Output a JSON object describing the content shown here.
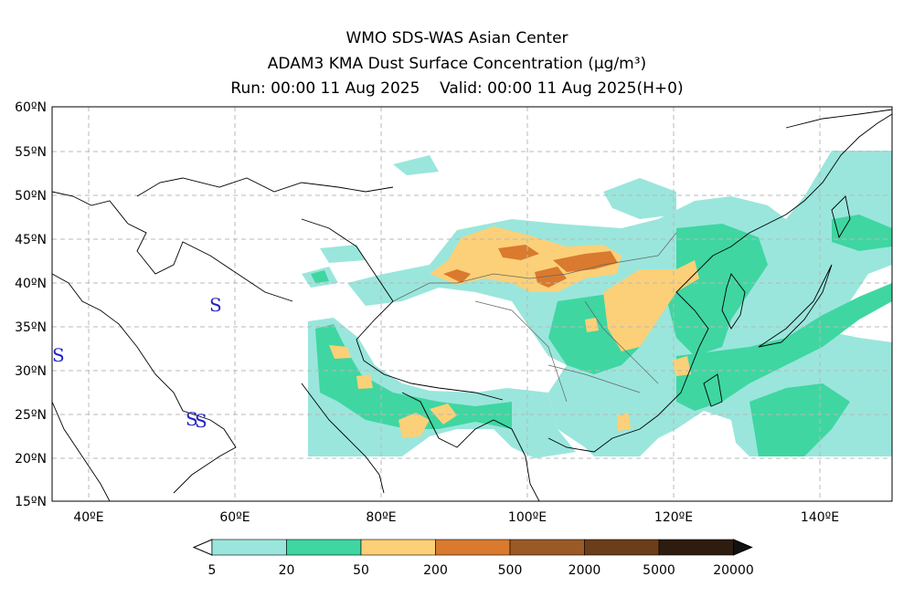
{
  "header": {
    "line1": "WMO SDS-WAS Asian Center",
    "line2": "ADAM3 KMA Dust Surface Concentration (μg/m³)",
    "line3_run": "Run: 00:00 11 Aug 2025",
    "line3_valid": "Valid: 00:00 11 Aug 2025(H+0)"
  },
  "map": {
    "lat_labels": [
      "60ºN",
      "55ºN",
      "50ºN",
      "45ºN",
      "40ºN",
      "35ºN",
      "30ºN",
      "25ºN",
      "20ºN",
      "15ºN"
    ],
    "lon_labels": [
      "40ºE",
      "60ºE",
      "80ºE",
      "100ºE",
      "120ºE",
      "140ºE"
    ],
    "storm_markers": [
      "S",
      "S",
      "S",
      "S"
    ]
  },
  "colorbar": {
    "ticks": [
      "5",
      "20",
      "50",
      "200",
      "500",
      "2000",
      "5000",
      "20000"
    ],
    "colors": [
      "#9ae6dc",
      "#3fd6a2",
      "#fbd078",
      "#d97a2e",
      "#9a5a25",
      "#6b3d18",
      "#2e1c0e"
    ],
    "under_color": "#ffffff",
    "over_color": "#111111"
  }
}
